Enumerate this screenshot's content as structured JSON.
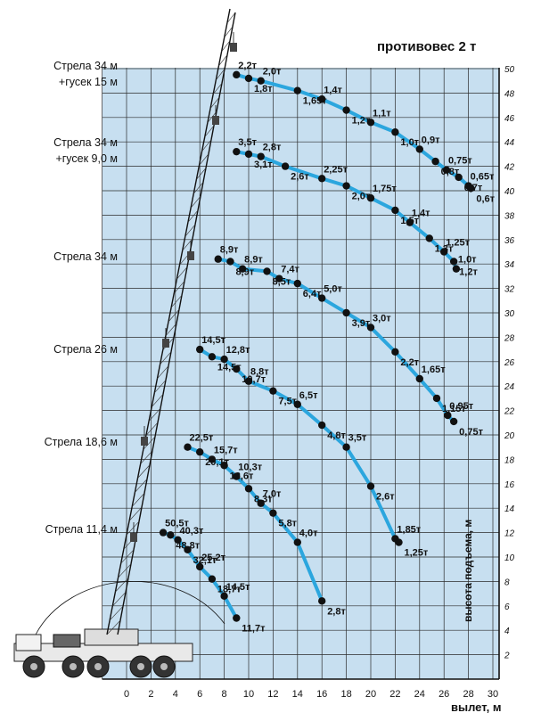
{
  "title": "противовес 2 т",
  "axes": {
    "x_label": "вылет, м",
    "y_label": "высота подъема, м",
    "x_ticks": [
      "0",
      "2",
      "4",
      "6",
      "8",
      "10",
      "12",
      "14",
      "16",
      "18",
      "20",
      "22",
      "24",
      "26",
      "28",
      "30"
    ],
    "y_ticks": [
      "2",
      "4",
      "6",
      "8",
      "10",
      "12",
      "14",
      "16",
      "18",
      "20",
      "22",
      "24",
      "26",
      "28",
      "30",
      "32",
      "34",
      "36",
      "38",
      "40",
      "42",
      "44",
      "46",
      "48",
      "50"
    ]
  },
  "colors": {
    "grid_bg": "#c7dff0",
    "grid_line": "#2b2b2b",
    "curve": "#2ba6de",
    "point": "#111111"
  },
  "boom_labels": [
    {
      "lines": [
        "Стрела 34 м",
        "+гусек 15 м"
      ]
    },
    {
      "lines": [
        "Стрела 34 м",
        "+гусек 9,0 м"
      ]
    },
    {
      "lines": [
        "Стрела 34 м"
      ]
    },
    {
      "lines": [
        "Стрела 26 м"
      ]
    },
    {
      "lines": [
        "Стрела 18,6 м"
      ]
    },
    {
      "lines": [
        "Стрела 11,4 м"
      ]
    }
  ],
  "chart_data": {
    "type": "scatter",
    "x_unit": "m (вылет)",
    "y_unit": "m (высота подъема)",
    "xlim": [
      0,
      30
    ],
    "ylim": [
      0,
      50
    ],
    "series": [
      {
        "name": "Стрела 34 м +гусек 15 м",
        "points": [
          {
            "x": 9,
            "y": 49.5,
            "load": "2,2т"
          },
          {
            "x": 10,
            "y": 49.2,
            "load": "1,8т"
          },
          {
            "x": 11,
            "y": 49,
            "load": "2,0т"
          },
          {
            "x": 14,
            "y": 48.2,
            "load": "1,65т"
          },
          {
            "x": 16,
            "y": 47.5,
            "load": "1,4т"
          },
          {
            "x": 18,
            "y": 46.6,
            "load": "1,2т"
          },
          {
            "x": 20,
            "y": 45.6,
            "load": "1,1т"
          },
          {
            "x": 22,
            "y": 44.8,
            "load": "1,0т"
          },
          {
            "x": 24,
            "y": 43.4,
            "load": "0,9т"
          },
          {
            "x": 25.3,
            "y": 42.4,
            "load": "0,8т"
          },
          {
            "x": 26.2,
            "y": 41.7,
            "load": "0,75т"
          },
          {
            "x": 27.2,
            "y": 41.1,
            "load": "0,7т"
          },
          {
            "x": 28,
            "y": 40.4,
            "load": "0,65т"
          },
          {
            "x": 28.2,
            "y": 40.2,
            "load": "0,6т"
          }
        ]
      },
      {
        "name": "Стрела 34 м +гусек 9,0 м",
        "points": [
          {
            "x": 9,
            "y": 43.2,
            "load": "3,5т"
          },
          {
            "x": 10,
            "y": 43,
            "load": "3,1т"
          },
          {
            "x": 11,
            "y": 42.8,
            "load": "2,8т"
          },
          {
            "x": 13,
            "y": 42,
            "load": "2,6т"
          },
          {
            "x": 16,
            "y": 41,
            "load": "2,25т"
          },
          {
            "x": 18,
            "y": 40.4,
            "load": "2,0т"
          },
          {
            "x": 20,
            "y": 39.4,
            "load": "1,75т"
          },
          {
            "x": 22,
            "y": 38.4,
            "load": "1,5т"
          },
          {
            "x": 23.2,
            "y": 37.4,
            "load": "1,4т"
          },
          {
            "x": 24.8,
            "y": 36.1,
            "load": "1,3т"
          },
          {
            "x": 26,
            "y": 35,
            "load": "1,25т"
          },
          {
            "x": 26.8,
            "y": 34.2,
            "load": "1,2т"
          },
          {
            "x": 27,
            "y": 33.6,
            "load": "1,0т"
          }
        ]
      },
      {
        "name": "Стрела 34 м",
        "points": [
          {
            "x": 7.5,
            "y": 34.4,
            "load": "8,9т"
          },
          {
            "x": 8.5,
            "y": 34.2,
            "load": "8,9т"
          },
          {
            "x": 9.5,
            "y": 33.6,
            "load": "8,9т"
          },
          {
            "x": 11.5,
            "y": 33.4,
            "load": "8,5т"
          },
          {
            "x": 12.5,
            "y": 32.8,
            "load": "7,4т"
          },
          {
            "x": 14,
            "y": 32.4,
            "load": "6,4т"
          },
          {
            "x": 16,
            "y": 31.2,
            "load": "5,0т"
          },
          {
            "x": 18,
            "y": 30,
            "load": "3,9т"
          },
          {
            "x": 20,
            "y": 28.8,
            "load": "3,0т"
          },
          {
            "x": 22,
            "y": 26.8,
            "load": "2,2т"
          },
          {
            "x": 24,
            "y": 24.6,
            "load": "1,65т"
          },
          {
            "x": 25.4,
            "y": 23,
            "load": "1,15т"
          },
          {
            "x": 26.3,
            "y": 21.6,
            "load": "0,95т"
          },
          {
            "x": 26.8,
            "y": 21.1,
            "load": "0,75т"
          }
        ]
      },
      {
        "name": "Стрела 26 м",
        "points": [
          {
            "x": 6,
            "y": 27,
            "load": "14,5т"
          },
          {
            "x": 7,
            "y": 26.4,
            "load": "14,5т"
          },
          {
            "x": 8,
            "y": 26.2,
            "load": "12,8т"
          },
          {
            "x": 9,
            "y": 25.4,
            "load": "10,7т"
          },
          {
            "x": 10,
            "y": 24.4,
            "load": "8,8т"
          },
          {
            "x": 12,
            "y": 23.6,
            "load": "7,5т"
          },
          {
            "x": 14,
            "y": 22.5,
            "load": "6,5т"
          },
          {
            "x": 16,
            "y": 20.8,
            "load": "4,8т"
          },
          {
            "x": 18,
            "y": 19,
            "load": "3,5т"
          },
          {
            "x": 20,
            "y": 15.8,
            "load": "2,6т"
          },
          {
            "x": 22,
            "y": 11.5,
            "load": "1,85т"
          },
          {
            "x": 22.3,
            "y": 11.2,
            "load": "1,25т"
          }
        ]
      },
      {
        "name": "Стрела 18,6 м",
        "points": [
          {
            "x": 5,
            "y": 19,
            "load": "22,5т"
          },
          {
            "x": 6,
            "y": 18.6,
            "load": "20,1т"
          },
          {
            "x": 7,
            "y": 18,
            "load": "15,7т"
          },
          {
            "x": 8,
            "y": 17.5,
            "load": "12,6т"
          },
          {
            "x": 9,
            "y": 16.6,
            "load": "10,3т"
          },
          {
            "x": 10,
            "y": 15.6,
            "load": "8,3т"
          },
          {
            "x": 11,
            "y": 14.4,
            "load": "7,0т"
          },
          {
            "x": 12,
            "y": 13.6,
            "load": "5,8т"
          },
          {
            "x": 14,
            "y": 11.2,
            "load": "4,0т"
          },
          {
            "x": 16,
            "y": 6.4,
            "load": "2,8т"
          }
        ]
      },
      {
        "name": "Стрела 11,4 м",
        "points": [
          {
            "x": 3,
            "y": 12,
            "load": "50,5т"
          },
          {
            "x": 3.6,
            "y": 11.8,
            "load": "48,8т"
          },
          {
            "x": 4.2,
            "y": 11.4,
            "load": "40,3т"
          },
          {
            "x": 5,
            "y": 10.6,
            "load": "32,1т"
          },
          {
            "x": 6,
            "y": 9.2,
            "load": "25,2т"
          },
          {
            "x": 7,
            "y": 8.2,
            "load": "18,7т"
          },
          {
            "x": 8,
            "y": 6.8,
            "load": "14,5т"
          },
          {
            "x": 9,
            "y": 5,
            "load": "11,7т"
          }
        ]
      }
    ]
  }
}
